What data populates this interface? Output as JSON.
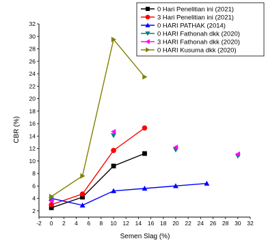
{
  "chart_data": {
    "type": "line",
    "title": "",
    "xlabel": "Semen Slag (%)",
    "ylabel": "CBR (%)",
    "xlim": [
      -2,
      32
    ],
    "ylim": [
      1,
      32
    ],
    "x_ticks": [
      -2,
      0,
      2,
      4,
      6,
      8,
      10,
      12,
      14,
      16,
      18,
      20,
      22,
      24,
      26,
      28,
      30,
      32
    ],
    "y_ticks": [
      2,
      4,
      6,
      8,
      10,
      12,
      14,
      16,
      18,
      20,
      22,
      24,
      26,
      28,
      30,
      32
    ],
    "grid": false,
    "legend_position": "top-right",
    "series": [
      {
        "name": "0 Hari Penelitian ini (2021)",
        "color": "#000000",
        "marker": "square",
        "line": true,
        "x": [
          0,
          5,
          10,
          15
        ],
        "y": [
          2.5,
          4.2,
          9.2,
          11.2
        ]
      },
      {
        "name": "3 Hari Penelitian ini (2021)",
        "color": "#ff0000",
        "marker": "circle",
        "line": true,
        "x": [
          0,
          5,
          10,
          15
        ],
        "y": [
          3.0,
          4.7,
          11.7,
          15.3
        ]
      },
      {
        "name": "0 HARI PATHAK (2014)",
        "color": "#0000ff",
        "marker": "triangle-up",
        "line": true,
        "x": [
          0,
          5,
          10,
          15,
          20,
          25
        ],
        "y": [
          4.0,
          2.9,
          5.2,
          5.6,
          6.0,
          6.4
        ]
      },
      {
        "name": "0 HARI Fathonah dkk (2020)",
        "color": "#008080",
        "marker": "triangle-down",
        "line": false,
        "x": [
          0,
          10,
          20,
          30
        ],
        "y": [
          3.8,
          14.1,
          11.8,
          10.8
        ]
      },
      {
        "name": "3 HARI Fathonah dkk (2020)",
        "color": "#ff00ff",
        "marker": "triangle-left",
        "line": false,
        "x": [
          0,
          10,
          20,
          30
        ],
        "y": [
          3.6,
          14.7,
          12.2,
          11.1
        ]
      },
      {
        "name": "0 HARI Kusuma dkk (2020)",
        "color": "#808000",
        "marker": "triangle-right",
        "line": true,
        "x": [
          0,
          5,
          10,
          15
        ],
        "y": [
          4.3,
          7.6,
          29.5,
          23.5
        ]
      }
    ]
  }
}
